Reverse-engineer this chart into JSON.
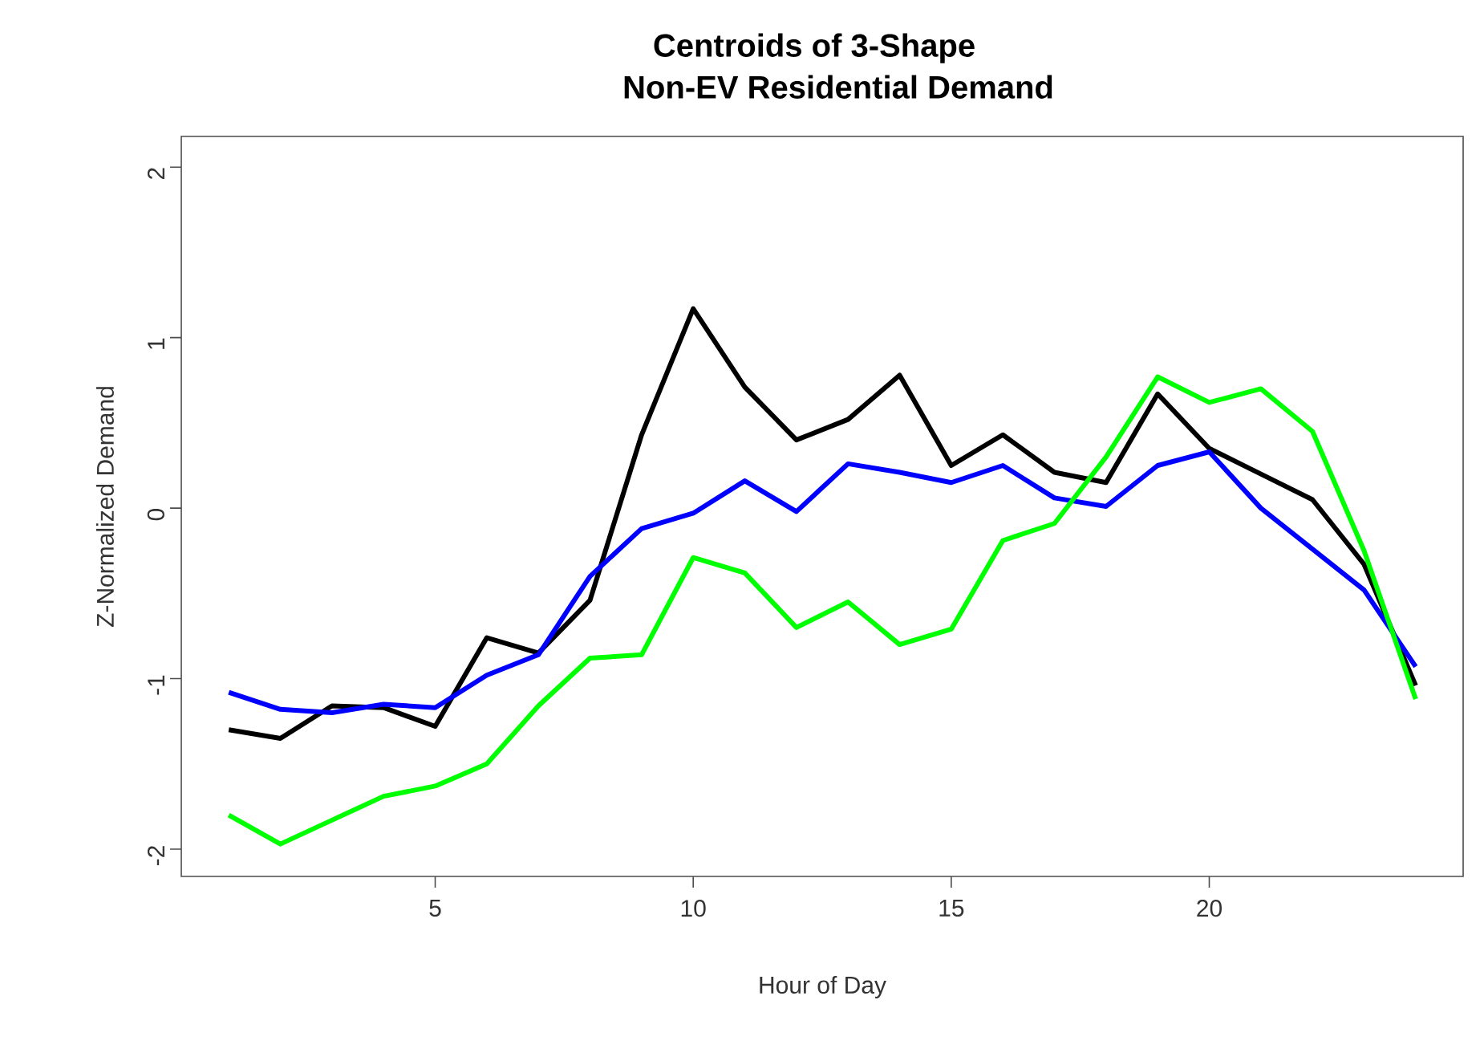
{
  "chart_data": {
    "type": "line",
    "title": "Centroids of 3-Shape",
    "subtitle": "Non-EV Residential Demand",
    "xlabel": "Hour of Day",
    "ylabel": "Z-Normalized Demand",
    "x": [
      1,
      2,
      3,
      4,
      5,
      6,
      7,
      8,
      9,
      10,
      11,
      12,
      13,
      14,
      15,
      16,
      17,
      18,
      19,
      20,
      21,
      22,
      23,
      24
    ],
    "series": [
      {
        "color": "#000000",
        "values": [
          -1.3,
          -1.35,
          -1.16,
          -1.17,
          -1.28,
          -0.76,
          -0.85,
          -0.54,
          0.43,
          1.17,
          0.71,
          0.4,
          0.52,
          0.78,
          0.25,
          0.43,
          0.21,
          0.15,
          0.67,
          0.35,
          0.2,
          0.05,
          -0.33,
          -1.04
        ]
      },
      {
        "color": "#0000ff",
        "values": [
          -1.08,
          -1.18,
          -1.2,
          -1.15,
          -1.17,
          -0.98,
          -0.86,
          -0.4,
          -0.12,
          -0.03,
          0.16,
          -0.02,
          0.26,
          0.21,
          0.15,
          0.25,
          0.06,
          0.01,
          0.25,
          0.33,
          0.0,
          -0.24,
          -0.48,
          -0.93
        ]
      },
      {
        "color": "#00ff00",
        "values": [
          -1.8,
          -1.97,
          -1.83,
          -1.69,
          -1.63,
          -1.5,
          -1.16,
          -0.88,
          -0.86,
          -0.29,
          -0.38,
          -0.7,
          -0.55,
          -0.8,
          -0.71,
          -0.19,
          -0.09,
          0.3,
          0.77,
          0.62,
          0.7,
          0.45,
          -0.25,
          -1.12
        ]
      }
    ],
    "xlim": [
      0.08,
      24.92
    ],
    "ylim": [
      -2.16,
      2.18
    ],
    "xticks": [
      5,
      10,
      15,
      20
    ],
    "yticks": [
      -2,
      -1,
      0,
      1,
      2
    ],
    "grid": false,
    "marker": "none",
    "line_style": "solid"
  }
}
